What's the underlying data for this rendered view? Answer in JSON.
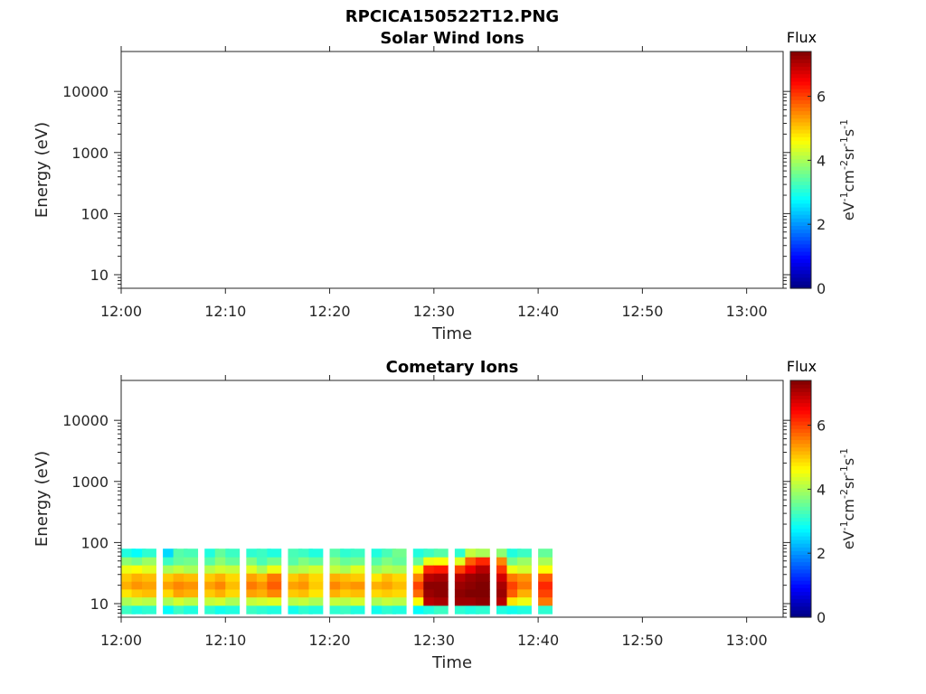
{
  "figure": {
    "title": "RPCICA150522T12.PNG"
  },
  "colorbar": {
    "title": "Flux",
    "units_label": "eV-1cm-2sr-1s-1",
    "units_parts": [
      "eV",
      "-1",
      "cm",
      "-2",
      "sr",
      "-1",
      "s",
      "-1"
    ],
    "ticks": [
      "0",
      "2",
      "4",
      "6"
    ],
    "range": [
      0,
      7.4
    ],
    "colormap": "jet"
  },
  "chart_data": [
    {
      "type": "heatmap",
      "title": "Solar Wind Ions",
      "xlabel": "Time",
      "ylabel": "Energy (eV)",
      "x_ticks": [
        "12:00",
        "12:10",
        "12:20",
        "12:30",
        "12:40",
        "12:50",
        "13:00"
      ],
      "x_range_minutes": [
        0,
        63.5
      ],
      "y_ticks": [
        "10",
        "100",
        "1000",
        "10000"
      ],
      "y_scale": "log",
      "y_range": [
        6,
        45000
      ],
      "cells": []
    },
    {
      "type": "heatmap",
      "title": "Cometary Ions",
      "xlabel": "Time",
      "ylabel": "Energy (eV)",
      "x_ticks": [
        "12:00",
        "12:10",
        "12:20",
        "12:30",
        "12:40",
        "12:50",
        "13:00"
      ],
      "x_range_minutes": [
        0,
        63.5
      ],
      "y_ticks": [
        "10",
        "100",
        "1000",
        "10000"
      ],
      "y_scale": "log",
      "y_range": [
        6,
        45000
      ],
      "energy_bins": [
        8,
        11,
        15,
        20,
        27,
        37,
        50,
        68
      ],
      "time_bins": [
        "12:00",
        "12:01",
        "12:02",
        "12:04",
        "12:05",
        "12:06",
        "12:08",
        "12:09",
        "12:10",
        "12:12",
        "12:13",
        "12:14",
        "12:16",
        "12:17",
        "12:18",
        "12:20",
        "12:21",
        "12:22",
        "12:24",
        "12:25",
        "12:26",
        "12:28",
        "12:29",
        "12:30",
        "12:32",
        "12:33",
        "12:34",
        "12:36",
        "12:37",
        "12:38",
        "12:40"
      ],
      "flux": [
        [
          3.2,
          4.0,
          4.8,
          5.2,
          5.0,
          4.5,
          3.8,
          3.0
        ],
        [
          3.0,
          4.2,
          5.0,
          5.4,
          5.2,
          4.6,
          3.6,
          2.8
        ],
        [
          3.1,
          4.1,
          5.1,
          5.3,
          5.1,
          4.4,
          3.9,
          3.1
        ],
        [
          2.8,
          4.0,
          4.9,
          5.3,
          5.0,
          4.0,
          3.2,
          2.5
        ],
        [
          3.2,
          4.3,
          5.3,
          5.5,
          5.2,
          4.2,
          3.5,
          3.4
        ],
        [
          3.0,
          4.1,
          5.2,
          5.4,
          5.1,
          4.0,
          3.6,
          3.3
        ],
        [
          3.1,
          4.2,
          5.0,
          5.3,
          5.0,
          4.1,
          3.4,
          3.0
        ],
        [
          2.9,
          4.3,
          5.2,
          5.5,
          5.2,
          4.3,
          3.8,
          3.5
        ],
        [
          3.0,
          4.0,
          4.9,
          5.1,
          4.9,
          4.2,
          3.5,
          3.2
        ],
        [
          3.2,
          4.2,
          5.3,
          5.6,
          5.3,
          4.4,
          3.7,
          3.1
        ],
        [
          3.1,
          4.3,
          5.2,
          5.4,
          5.1,
          4.0,
          3.3,
          3.2
        ],
        [
          3.0,
          4.4,
          5.5,
          5.8,
          5.6,
          4.5,
          3.6,
          3.0
        ],
        [
          2.9,
          4.1,
          5.0,
          5.3,
          5.0,
          4.0,
          3.4,
          3.3
        ],
        [
          3.1,
          4.2,
          5.1,
          5.4,
          5.2,
          4.1,
          3.7,
          3.2
        ],
        [
          3.0,
          4.0,
          4.8,
          5.0,
          4.9,
          4.3,
          3.5,
          3.0
        ],
        [
          3.1,
          4.2,
          5.2,
          5.5,
          5.2,
          4.2,
          3.8,
          3.4
        ],
        [
          3.2,
          4.1,
          5.0,
          5.3,
          5.1,
          4.0,
          3.5,
          3.1
        ],
        [
          3.0,
          4.3,
          5.1,
          5.4,
          5.0,
          4.4,
          3.6,
          3.2
        ],
        [
          2.9,
          4.0,
          4.9,
          5.2,
          4.8,
          3.9,
          3.4,
          3.0
        ],
        [
          3.1,
          4.2,
          5.0,
          5.3,
          5.1,
          4.1,
          3.7,
          3.3
        ],
        [
          3.0,
          4.1,
          4.9,
          5.1,
          4.9,
          4.0,
          3.5,
          3.6
        ],
        [
          2.8,
          4.6,
          5.7,
          6.0,
          5.5,
          4.6,
          3.5,
          3.0
        ],
        [
          3.0,
          7.0,
          7.2,
          7.3,
          7.0,
          6.2,
          4.5,
          3.2
        ],
        [
          3.2,
          7.1,
          7.3,
          7.3,
          7.1,
          6.3,
          4.6,
          3.4
        ],
        [
          3.1,
          7.2,
          7.3,
          7.2,
          7.0,
          6.0,
          4.4,
          3.1
        ],
        [
          3.0,
          7.2,
          7.4,
          7.3,
          7.2,
          6.6,
          5.8,
          4.2
        ],
        [
          3.1,
          7.3,
          7.4,
          7.4,
          7.3,
          7.0,
          6.2,
          4.0
        ],
        [
          3.0,
          7.0,
          7.2,
          7.1,
          6.8,
          6.1,
          5.5,
          3.8
        ],
        [
          2.9,
          4.8,
          5.8,
          6.0,
          5.6,
          4.5,
          3.6,
          3.0
        ],
        [
          3.0,
          4.5,
          5.2,
          5.6,
          5.4,
          4.3,
          3.9,
          3.2
        ],
        [
          3.1,
          5.6,
          6.0,
          6.2,
          5.8,
          4.6,
          4.0,
          3.5
        ]
      ]
    }
  ]
}
